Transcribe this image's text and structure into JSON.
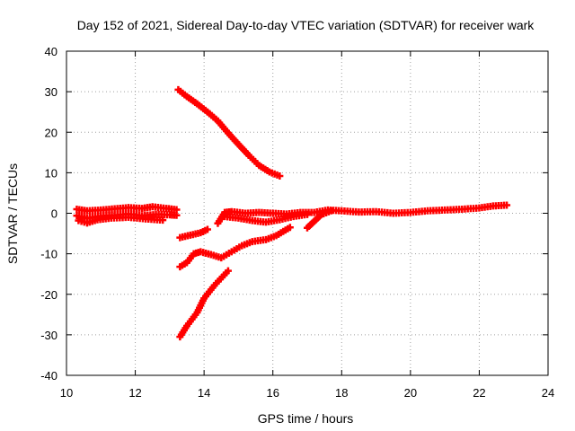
{
  "chart_data": {
    "type": "scatter",
    "title": "Day 152 of 2021, Sidereal Day-to-day VTEC variation (SDTVAR) for receiver wark",
    "xlabel": "GPS time / hours",
    "ylabel": "SDTVAR / TECUs",
    "xlim": [
      10,
      24
    ],
    "ylim": [
      -40,
      40
    ],
    "xticks": [
      "10",
      "12",
      "14",
      "16",
      "18",
      "20",
      "22",
      "24"
    ],
    "yticks": [
      "40",
      "30",
      "20",
      "10",
      "0",
      "-10",
      "-20",
      "-30",
      "-40"
    ],
    "grid": true,
    "marker_color": "#ff0000",
    "series": [
      {
        "x": [
          10.3,
          10.6,
          11.0,
          11.4,
          11.8,
          12.2,
          12.5,
          12.9,
          13.2
        ],
        "y": [
          1.0,
          0.6,
          0.8,
          1.1,
          1.4,
          1.2,
          1.6,
          1.2,
          0.9
        ]
      },
      {
        "x": [
          10.3,
          10.6,
          11.0,
          11.4,
          11.8,
          12.2,
          12.6,
          13.0,
          13.2
        ],
        "y": [
          -0.6,
          -1.2,
          -0.7,
          -0.5,
          -0.2,
          -0.6,
          -0.3,
          -0.4,
          -0.5
        ]
      },
      {
        "x": [
          10.35,
          10.6,
          10.9,
          11.3,
          11.8,
          12.3,
          12.8
        ],
        "y": [
          -1.8,
          -2.4,
          -1.6,
          -1.2,
          -1.0,
          -1.4,
          -1.7
        ]
      },
      {
        "x": [
          13.25,
          13.5,
          13.8,
          14.1,
          14.4,
          14.7,
          15.0,
          15.3,
          15.6,
          15.9,
          16.2
        ],
        "y": [
          30.5,
          28.8,
          27.0,
          25.0,
          22.8,
          19.8,
          17.0,
          14.3,
          11.8,
          10.2,
          9.2
        ]
      },
      {
        "x": [
          13.3,
          13.6,
          13.9,
          14.1
        ],
        "y": [
          -6.0,
          -5.4,
          -4.8,
          -4.0
        ]
      },
      {
        "x": [
          13.3,
          13.5,
          13.7,
          13.9,
          14.2,
          14.5,
          14.8,
          15.1,
          15.4,
          15.8,
          16.1,
          16.5
        ],
        "y": [
          -13.2,
          -12.2,
          -10.0,
          -9.5,
          -10.2,
          -11.0,
          -9.5,
          -8.0,
          -7.0,
          -6.5,
          -5.5,
          -3.5
        ]
      },
      {
        "x": [
          13.3,
          13.5,
          13.8,
          14.0,
          14.3,
          14.7
        ],
        "y": [
          -30.5,
          -27.8,
          -24.5,
          -21.0,
          -17.8,
          -14.2
        ]
      },
      {
        "x": [
          14.4,
          14.6,
          14.8,
          15.2,
          15.6,
          16.0,
          16.4,
          16.8,
          17.2,
          17.6,
          18.0,
          18.5,
          19.0,
          19.5,
          20.0,
          20.5,
          21.0,
          21.5,
          22.0,
          22.4,
          22.8
        ],
        "y": [
          -2.5,
          0.2,
          0.4,
          0.0,
          0.2,
          0.0,
          -0.2,
          0.2,
          0.2,
          0.8,
          0.6,
          0.3,
          0.4,
          0.0,
          0.2,
          0.6,
          0.8,
          1.0,
          1.3,
          1.8,
          2.0
        ]
      },
      {
        "x": [
          14.6,
          15.0,
          15.4,
          15.8,
          16.2,
          16.6,
          17.0
        ],
        "y": [
          -0.8,
          -1.2,
          -1.8,
          -2.2,
          -1.6,
          -0.8,
          -0.3
        ]
      },
      {
        "x": [
          17.0,
          17.2,
          17.4,
          17.7
        ],
        "y": [
          -3.6,
          -2.0,
          -0.4,
          0.6
        ]
      }
    ]
  }
}
